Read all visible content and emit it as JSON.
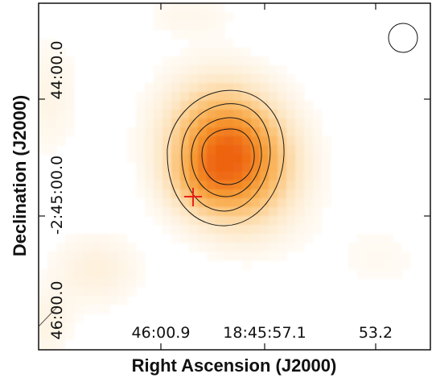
{
  "figure": {
    "xlabel": "Right Ascension (J2000)",
    "ylabel": "Declination (J2000)",
    "x_ticks": [
      "46:00.9",
      "18:45:57.1",
      "53.2"
    ],
    "y_ticks": [
      "44:00.0",
      "-2:45:00.0",
      "46:00.0"
    ],
    "colormap": [
      "#ffffff",
      "#fde6c3",
      "#fbbf6e",
      "#f5962f",
      "#ee6411"
    ],
    "contour_color": "#1a1a1a",
    "marker": {
      "symbol": "+",
      "color": "#e8231f"
    },
    "beam": "circle, top-right"
  }
}
